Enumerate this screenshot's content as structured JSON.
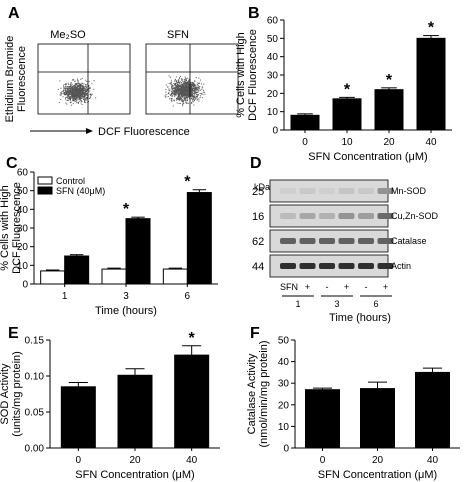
{
  "panel_labels": [
    "A",
    "B",
    "C",
    "D",
    "E",
    "F"
  ],
  "panel_a": {
    "plots": [
      "Me₂SO",
      "SFN"
    ],
    "ylabel_line1": "Ethidium Bromide",
    "ylabel_line2": "Fluorescence",
    "xlabel": "DCF Fluorescence"
  },
  "panel_d": {
    "kda_label": "kDa",
    "bands": [
      {
        "kda": "25",
        "name": "Mn-SOD"
      },
      {
        "kda": "16",
        "name": "Cu,Zn-SOD"
      },
      {
        "kda": "62",
        "name": "Catalase"
      },
      {
        "kda": "44",
        "name": "Actin"
      }
    ],
    "sfn_label": "SFN",
    "signs": [
      "-",
      "+",
      "-",
      "+",
      "-",
      "+"
    ],
    "time_points": [
      "1",
      "3",
      "6"
    ],
    "xlabel": "Time (hours)"
  },
  "chart_data": [
    {
      "panel": "B",
      "type": "bar",
      "categories": [
        "0",
        "10",
        "20",
        "40"
      ],
      "values": [
        8,
        17,
        22,
        50
      ],
      "errors": [
        0.8,
        0.8,
        1.0,
        1.5
      ],
      "significant": [
        false,
        true,
        true,
        true
      ],
      "xlabel": "SFN Concentration (μM)",
      "ylabel_line1": "% Cells with High",
      "ylabel_line2": "DCF Fluorescence",
      "ylim": [
        0,
        60
      ],
      "yticks": [
        "0",
        "10",
        "20",
        "30",
        "40",
        "50",
        "60"
      ],
      "bar_color": "#000000",
      "star": "*"
    },
    {
      "panel": "C",
      "type": "bar",
      "categories": [
        "1",
        "3",
        "6"
      ],
      "series": [
        {
          "name": "Control",
          "values": [
            7,
            8,
            8
          ],
          "errors": [
            0.5,
            0.5,
            0.5
          ],
          "color": "#ffffff"
        },
        {
          "name": "SFN (40μM)",
          "values": [
            15,
            35,
            49
          ],
          "errors": [
            0.7,
            0.8,
            1.5
          ],
          "color": "#000000"
        }
      ],
      "significant": [
        false,
        true,
        true
      ],
      "xlabel": "Time (hours)",
      "ylabel_line1": "% Cells with High",
      "ylabel_line2": "DCF Fluorescence",
      "ylim": [
        0,
        60
      ],
      "yticks": [
        "0",
        "10",
        "20",
        "30",
        "40",
        "50",
        "60"
      ],
      "legend_placement": "top-left",
      "star": "*"
    },
    {
      "panel": "E",
      "type": "bar",
      "categories": [
        "0",
        "20",
        "40"
      ],
      "values": [
        0.085,
        0.101,
        0.129
      ],
      "errors": [
        0.006,
        0.009,
        0.013
      ],
      "significant": [
        false,
        false,
        true
      ],
      "xlabel": "SFN Concentration (μM)",
      "ylabel_line1": "SOD Activity",
      "ylabel_line2": "(units/mg protein)",
      "ylim": [
        0,
        0.15
      ],
      "yticks": [
        "0.00",
        "0.05",
        "0.10",
        "0.15"
      ],
      "bar_color": "#000000",
      "star": "*"
    },
    {
      "panel": "F",
      "type": "bar",
      "categories": [
        "0",
        "20",
        "40"
      ],
      "values": [
        27,
        27.5,
        35
      ],
      "errors": [
        0.7,
        3,
        2
      ],
      "significant": [
        false,
        false,
        false
      ],
      "xlabel": "SFN Concentration (μM)",
      "ylabel_line1": "Catalase Activity",
      "ylabel_line2": "(nmol/min/mg protein)",
      "ylim": [
        0,
        50
      ],
      "yticks": [
        "0",
        "10",
        "20",
        "30",
        "40",
        "50"
      ],
      "bar_color": "#000000",
      "star": "*"
    }
  ]
}
